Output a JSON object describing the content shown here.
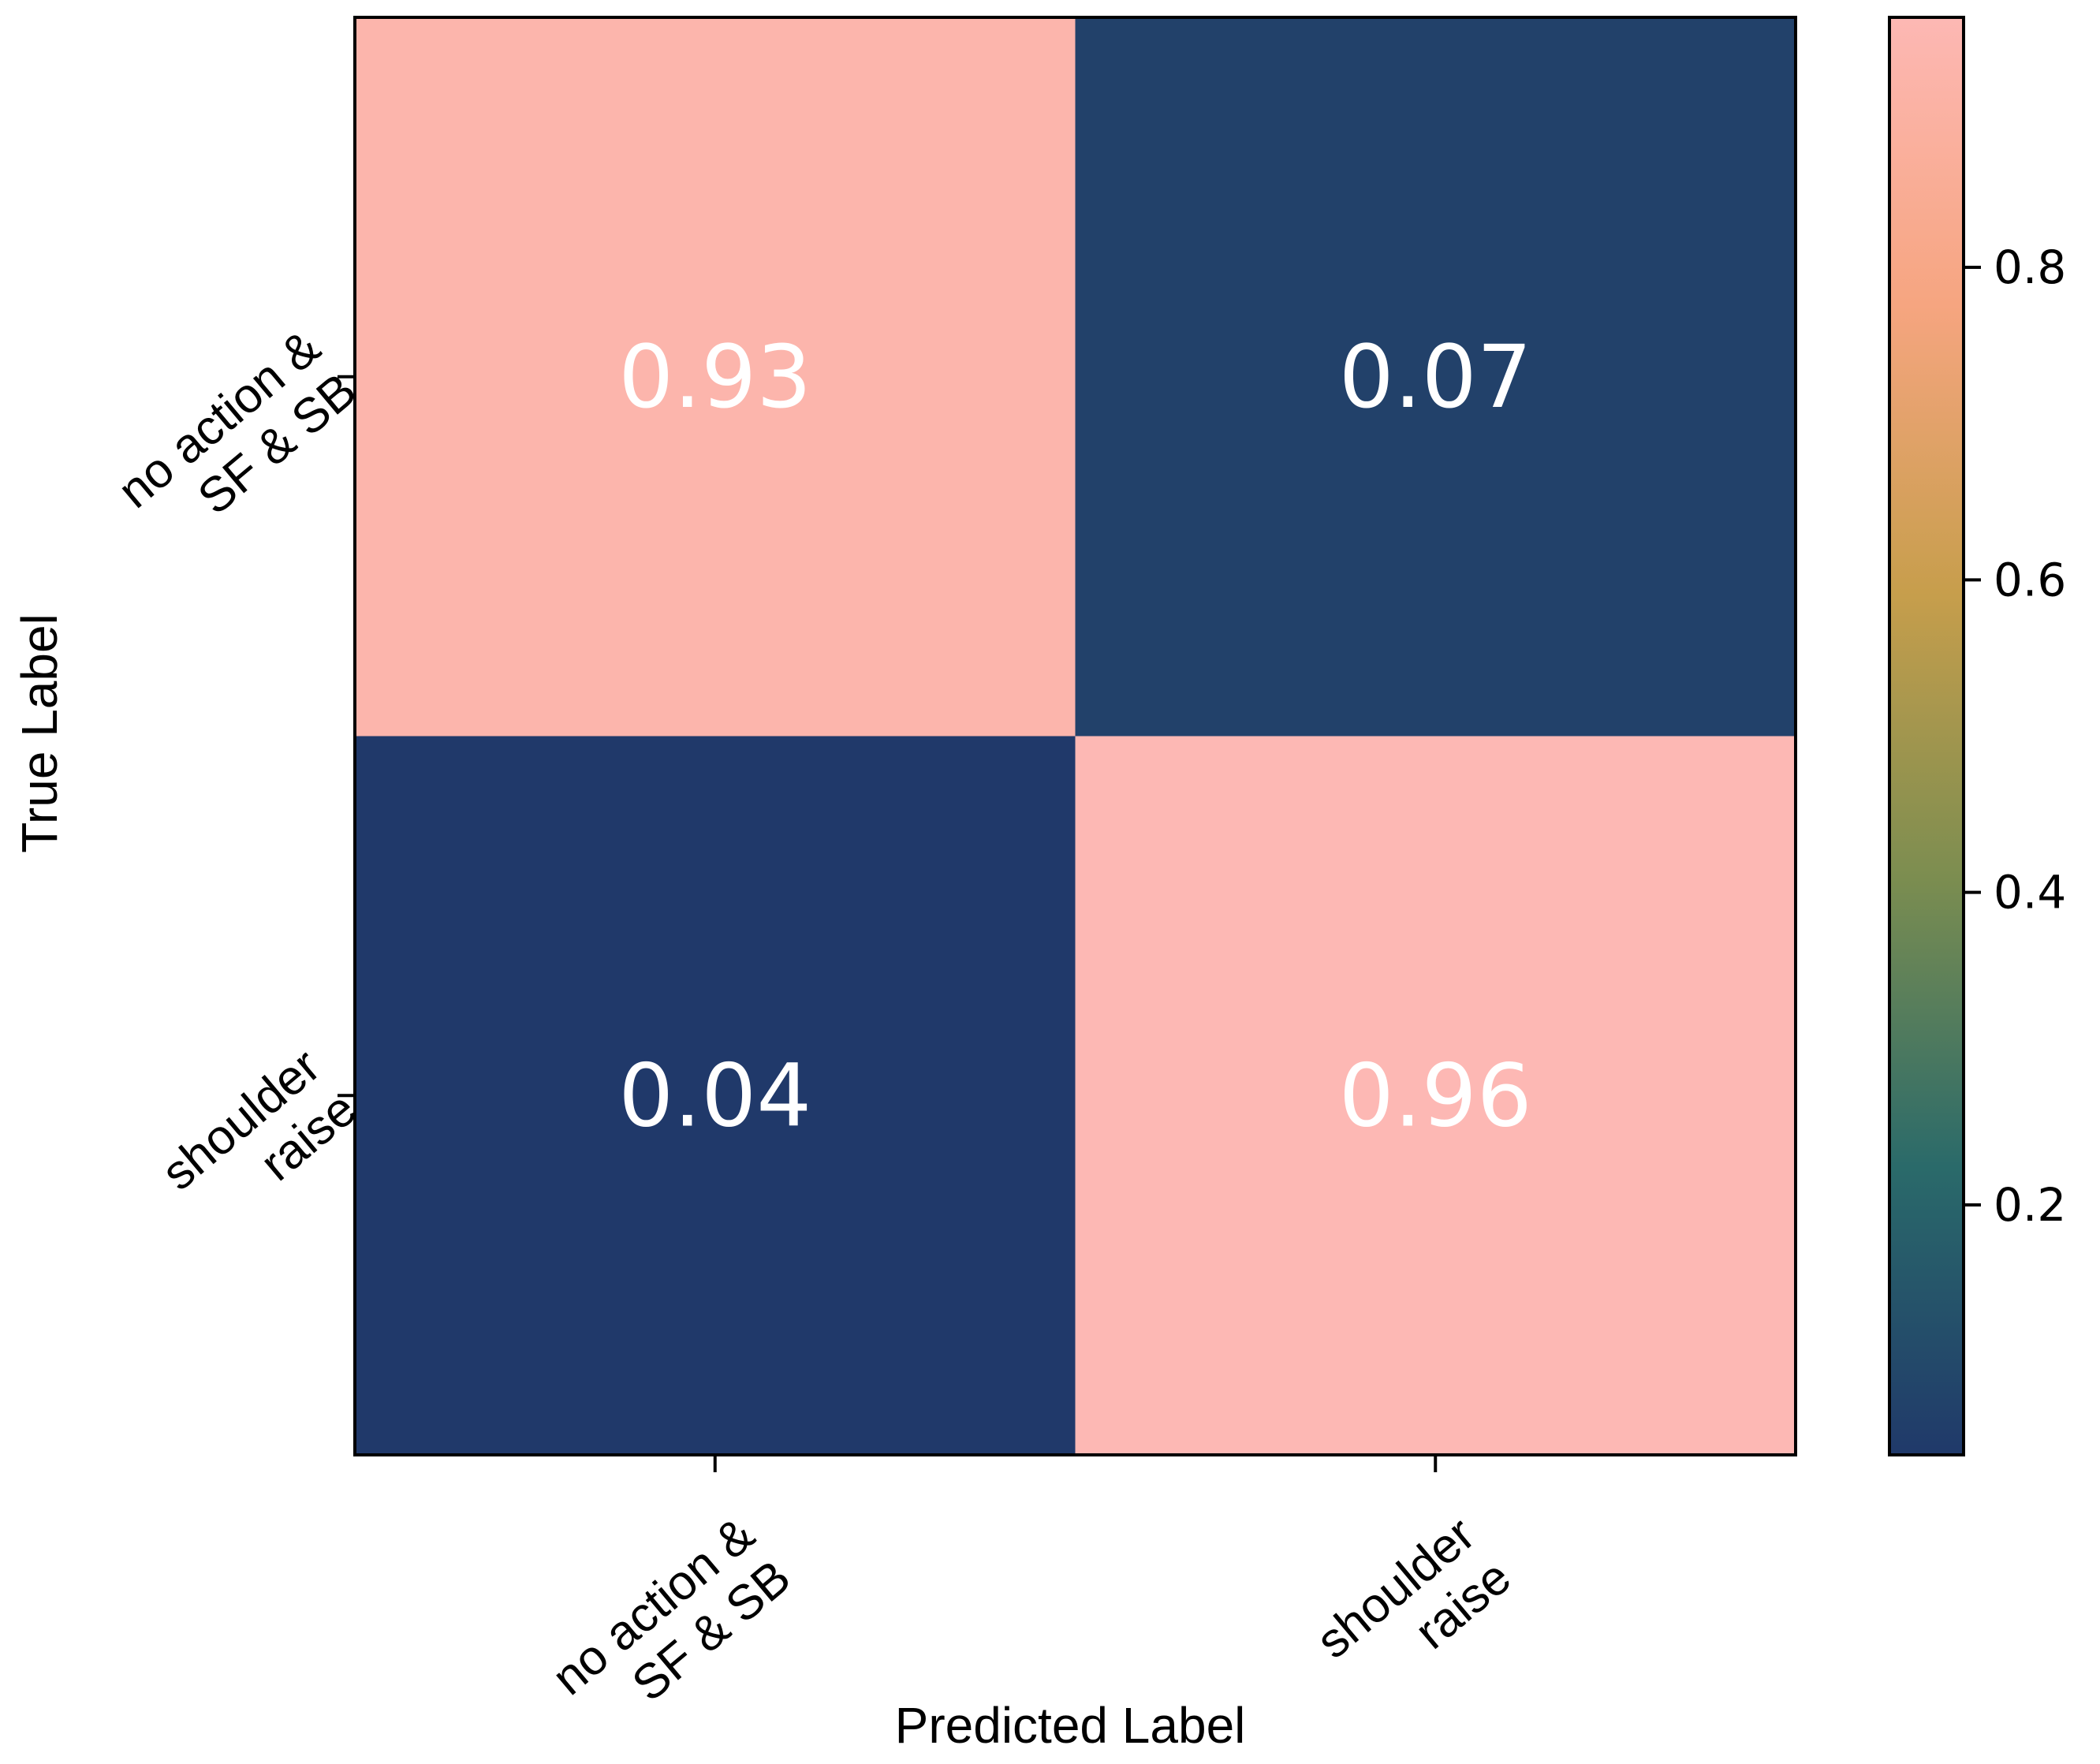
{
  "chart_data": {
    "type": "heatmap",
    "title": "",
    "xlabel": "Predicted Label",
    "ylabel": "True Label",
    "x_categories": [
      [
        "no action &",
        "SF & SB"
      ],
      [
        "shoulder",
        "raise"
      ]
    ],
    "y_categories": [
      [
        "no action &",
        "SF & SB"
      ],
      [
        "shoulder",
        "raise"
      ]
    ],
    "values": [
      [
        0.93,
        0.07
      ],
      [
        0.04,
        0.96
      ]
    ],
    "value_labels": [
      [
        "0.93",
        "0.07"
      ],
      [
        "0.04",
        "0.96"
      ]
    ],
    "colorbar": {
      "ticks": [
        0.2,
        0.4,
        0.6,
        0.8
      ],
      "tick_labels": [
        "0.2",
        "0.4",
        "0.6",
        "0.8"
      ],
      "range": [
        0.04,
        0.96
      ]
    },
    "colormap": [
      "#20396a",
      "#2a6a6a",
      "#7b8d50",
      "#c79e4c",
      "#f6a580",
      "#fdb8b4"
    ]
  }
}
